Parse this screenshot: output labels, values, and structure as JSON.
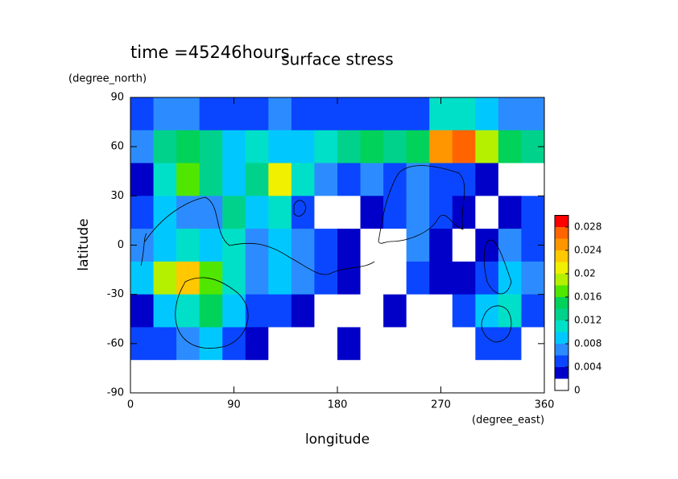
{
  "chart_data": {
    "type": "contour",
    "title": "surface stress",
    "subtitle": "time =45246hours",
    "x_label": "longitude",
    "x_units": "(degree_east)",
    "y_label": "latitude",
    "y_units": "(degree_north)",
    "xlim": [
      0,
      360
    ],
    "ylim": [
      -90,
      90
    ],
    "xticks": [
      0,
      90,
      180,
      270,
      360
    ],
    "yticks": [
      -90,
      -60,
      -30,
      0,
      30,
      60,
      90
    ],
    "x": [
      10,
      30,
      50,
      70,
      90,
      110,
      130,
      150,
      170,
      190,
      210,
      230,
      250,
      270,
      290,
      310,
      330,
      350
    ],
    "y": [
      80,
      60,
      40,
      20,
      0,
      -20,
      -40,
      -60,
      -80
    ],
    "z": [
      [
        0.005,
        0.006,
        0.006,
        0.005,
        0.004,
        0.004,
        0.006,
        0.005,
        0.004,
        0.005,
        0.004,
        0.004,
        0.005,
        0.01,
        0.01,
        0.008,
        0.006,
        0.006
      ],
      [
        0.006,
        0.012,
        0.014,
        0.012,
        0.008,
        0.01,
        0.008,
        0.008,
        0.01,
        0.012,
        0.014,
        0.012,
        0.014,
        0.024,
        0.026,
        0.018,
        0.014,
        0.012
      ],
      [
        0.002,
        0.01,
        0.016,
        0.012,
        0.008,
        0.012,
        0.02,
        0.01,
        0.006,
        0.004,
        0.006,
        0.004,
        0.006,
        0.004,
        0.004,
        0.002,
        0.001,
        0.001
      ],
      [
        0.004,
        0.008,
        0.006,
        0.006,
        0.012,
        0.008,
        0.01,
        0.004,
        0.001,
        0.001,
        0.003,
        0.004,
        0.006,
        0.004,
        0.003,
        0.001,
        0.003,
        0.004
      ],
      [
        0.006,
        0.008,
        0.01,
        0.008,
        0.01,
        0.006,
        0.008,
        0.006,
        0.004,
        0.003,
        0.001,
        0.001,
        0.006,
        0.003,
        0.001,
        0.003,
        0.006,
        0.004
      ],
      [
        0.008,
        0.018,
        0.022,
        0.016,
        0.01,
        0.006,
        0.008,
        0.006,
        0.004,
        0.003,
        0.001,
        0.001,
        0.004,
        0.003,
        0.002,
        0.004,
        0.008,
        0.006
      ],
      [
        0.003,
        0.008,
        0.01,
        0.014,
        0.008,
        0.005,
        0.004,
        0.002,
        0.001,
        0.001,
        0.001,
        0.003,
        0.001,
        0.001,
        0.004,
        0.008,
        0.01,
        0.004
      ],
      [
        0.004,
        0.004,
        0.006,
        0.008,
        0.004,
        0.003,
        0.001,
        0.001,
        0.001,
        0.003,
        0.001,
        0.001,
        0.001,
        0.001,
        0.001,
        0.004,
        0.004,
        0.001
      ],
      [
        0.001,
        0.001,
        0.001,
        0.001,
        0.001,
        0.001,
        0.001,
        0.001,
        0.001,
        0.001,
        0.001,
        0.001,
        0.001,
        0.001,
        0.001,
        0.001,
        0.001,
        0.001
      ]
    ],
    "colorbar": {
      "lim": [
        0,
        0.03
      ],
      "ticks": [
        0,
        0.004,
        0.008,
        0.012,
        0.016,
        0.02,
        0.024,
        0.028
      ],
      "levels": [
        0,
        0.002,
        0.004,
        0.006,
        0.008,
        0.01,
        0.012,
        0.014,
        0.016,
        0.018,
        0.02,
        0.022,
        0.024,
        0.026,
        0.028,
        0.03
      ],
      "colors": [
        "#ffffff",
        "#0000c8",
        "#0a46ff",
        "#2c8cff",
        "#00c8ff",
        "#00e0c8",
        "#00d28c",
        "#00d25a",
        "#50e600",
        "#b4f000",
        "#f0f000",
        "#ffc800",
        "#ff9600",
        "#ff6400",
        "#ff0000"
      ]
    }
  }
}
